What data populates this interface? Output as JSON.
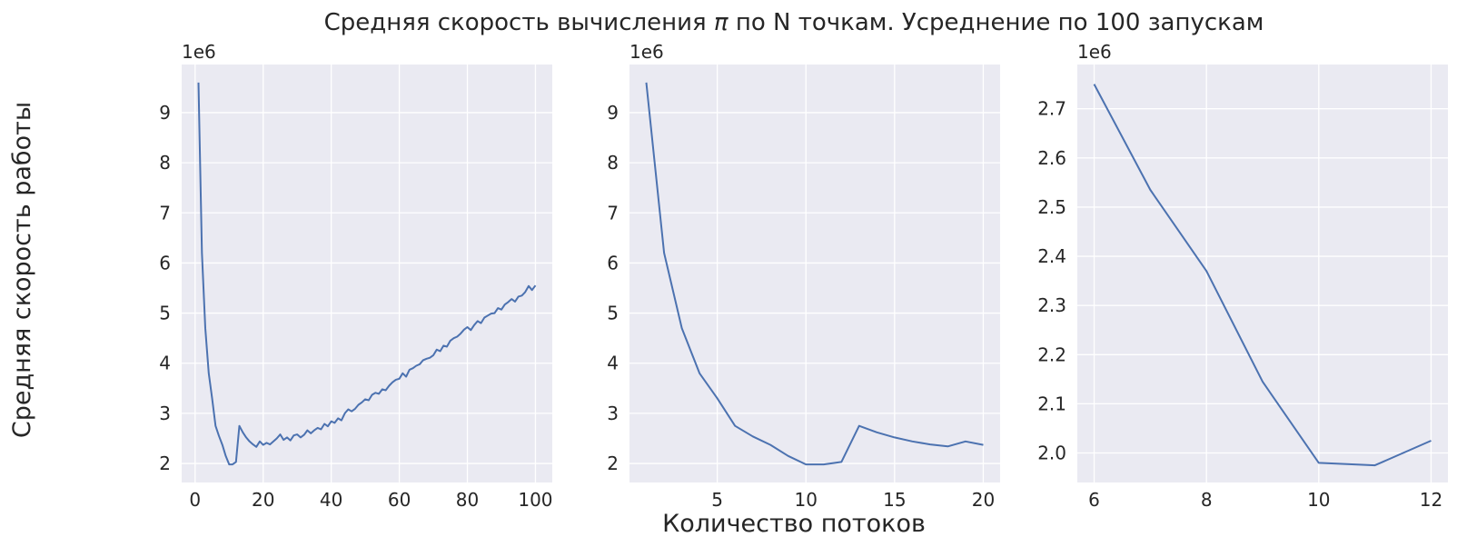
{
  "figure": {
    "title_main": "Средняя скорость вычисления ",
    "title_pi": "π",
    "title_rest": " по N точкам. Усреднение по 100 запускам",
    "ylabel": "Средняя скорость работы",
    "xlabel": "Количество потоков"
  },
  "style": {
    "panel_bg": "#eaeaf2",
    "grid": "#ffffff",
    "line": "#4c72b0",
    "text": "#262626"
  },
  "chart_data": [
    {
      "type": "line",
      "offset_label": "1e6",
      "grid": true,
      "xlim": [
        -3.95,
        104.95
      ],
      "ylim": [
        1.62,
        9.96
      ],
      "xticks": [
        0,
        20,
        40,
        60,
        80,
        100
      ],
      "yticks": [
        2,
        3,
        4,
        5,
        6,
        7,
        8,
        9
      ],
      "series": [
        {
          "x": [
            1,
            2,
            3,
            4,
            5,
            6,
            7,
            8,
            9,
            10,
            11,
            12,
            13,
            14,
            15,
            16,
            17,
            18,
            19,
            20,
            21,
            22,
            23,
            24,
            25,
            26,
            27,
            28,
            29,
            30,
            31,
            32,
            33,
            34,
            35,
            36,
            37,
            38,
            39,
            40,
            41,
            42,
            43,
            44,
            45,
            46,
            47,
            48,
            49,
            50,
            51,
            52,
            53,
            54,
            55,
            56,
            57,
            58,
            59,
            60,
            61,
            62,
            63,
            64,
            65,
            66,
            67,
            68,
            69,
            70,
            71,
            72,
            73,
            74,
            75,
            76,
            77,
            78,
            79,
            80,
            81,
            82,
            83,
            84,
            85,
            86,
            87,
            88,
            89,
            90,
            91,
            92,
            93,
            94,
            95,
            96,
            97,
            98,
            99,
            100
          ],
          "y": [
            9.6,
            6.2,
            4.7,
            3.8,
            3.3,
            2.75,
            2.55,
            2.37,
            2.15,
            1.98,
            1.98,
            2.03,
            2.75,
            2.62,
            2.52,
            2.44,
            2.38,
            2.33,
            2.44,
            2.37,
            2.41,
            2.38,
            2.44,
            2.5,
            2.58,
            2.47,
            2.52,
            2.46,
            2.56,
            2.58,
            2.52,
            2.57,
            2.66,
            2.6,
            2.66,
            2.71,
            2.68,
            2.79,
            2.74,
            2.84,
            2.81,
            2.9,
            2.86,
            3.0,
            3.08,
            3.04,
            3.09,
            3.17,
            3.22,
            3.28,
            3.26,
            3.37,
            3.41,
            3.39,
            3.48,
            3.46,
            3.55,
            3.62,
            3.67,
            3.69,
            3.8,
            3.73,
            3.87,
            3.9,
            3.95,
            3.98,
            4.06,
            4.09,
            4.11,
            4.16,
            4.27,
            4.24,
            4.35,
            4.33,
            4.45,
            4.5,
            4.53,
            4.59,
            4.67,
            4.72,
            4.66,
            4.76,
            4.84,
            4.8,
            4.91,
            4.95,
            4.99,
            5.0,
            5.1,
            5.07,
            5.17,
            5.22,
            5.28,
            5.23,
            5.33,
            5.35,
            5.42,
            5.54,
            5.46,
            5.55
          ]
        }
      ]
    },
    {
      "type": "line",
      "offset_label": "1e6",
      "grid": true,
      "xlim": [
        0.05,
        20.95
      ],
      "ylim": [
        1.62,
        9.96
      ],
      "xticks": [
        5,
        10,
        15,
        20
      ],
      "yticks": [
        2,
        3,
        4,
        5,
        6,
        7,
        8,
        9
      ],
      "series": [
        {
          "x": [
            1,
            2,
            3,
            4,
            5,
            6,
            7,
            8,
            9,
            10,
            11,
            12,
            13,
            14,
            15,
            16,
            17,
            18,
            19,
            20
          ],
          "y": [
            9.6,
            6.2,
            4.7,
            3.8,
            3.3,
            2.75,
            2.54,
            2.37,
            2.15,
            1.98,
            1.98,
            2.03,
            2.75,
            2.62,
            2.52,
            2.44,
            2.38,
            2.34,
            2.44,
            2.37
          ]
        }
      ]
    },
    {
      "type": "line",
      "offset_label": "1e6",
      "grid": true,
      "xlim": [
        5.7,
        12.3
      ],
      "ylim": [
        1.94,
        2.79
      ],
      "xticks": [
        6,
        8,
        10,
        12
      ],
      "yticks": [
        2.0,
        2.1,
        2.2,
        2.3,
        2.4,
        2.5,
        2.6,
        2.7
      ],
      "ytick_labels": [
        "2.0",
        "2.1",
        "2.2",
        "2.3",
        "2.4",
        "2.5",
        "2.6",
        "2.7"
      ],
      "series": [
        {
          "x": [
            6,
            7,
            8,
            9,
            10,
            11,
            12
          ],
          "y": [
            2.75,
            2.535,
            2.37,
            2.145,
            1.98,
            1.975,
            2.025
          ]
        }
      ]
    }
  ]
}
